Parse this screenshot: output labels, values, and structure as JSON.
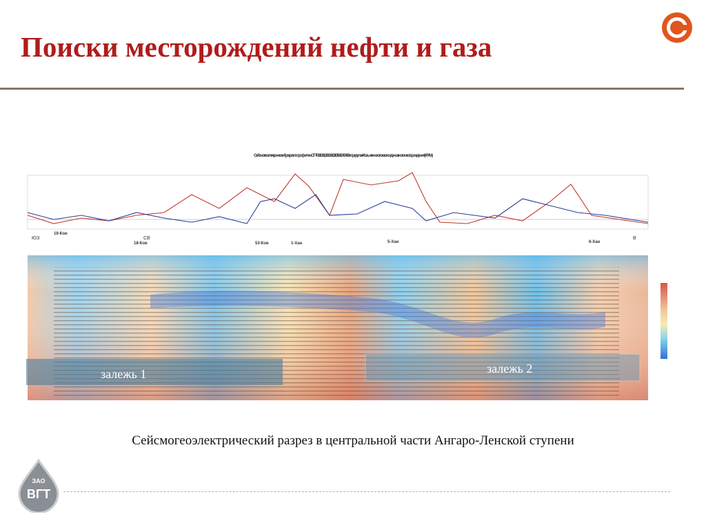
{
  "header": {
    "title": "Поиски месторождений нефти и газа"
  },
  "figure": {
    "title": "Сейсмогеоэлектрический разрез по профилям ОГТ 061088, 011088, 010198, 040499 в пределах Ковыктинского газоконденсатного месторождения (КГКМ)",
    "direction_left": "ЮЗ",
    "direction_mid": "СВ",
    "direction_right": "В",
    "wells": [
      "19-Ков",
      "18-Ков",
      "53-Ков",
      "1-Хан",
      "5-Хан",
      "6-Хан"
    ],
    "deposits": [
      "залежь 1",
      "залежь 2"
    ]
  },
  "caption": "Сейсмогеоэлектрический разрез в центральной части Ангаро-Ленской ступени",
  "logo": {
    "org": "ЗАО",
    "name": "ВГТ"
  }
}
